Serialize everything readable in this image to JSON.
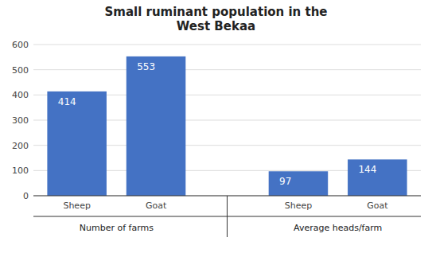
{
  "chart_data": {
    "type": "bar",
    "title": "Small ruminant population in the\nWest Bekaa",
    "categories": [
      "Sheep",
      "Goat",
      "Sheep",
      "Goat"
    ],
    "groups": [
      "Number of farms",
      "Number of farms",
      "Average heads/farm",
      "Average heads/farm"
    ],
    "values": [
      414,
      553,
      97,
      144
    ],
    "color": "#4472C4",
    "ylim": [
      0,
      600
    ],
    "yticks": [
      0,
      100,
      200,
      300,
      400,
      500,
      600
    ],
    "grid": true,
    "data_labels": true
  }
}
